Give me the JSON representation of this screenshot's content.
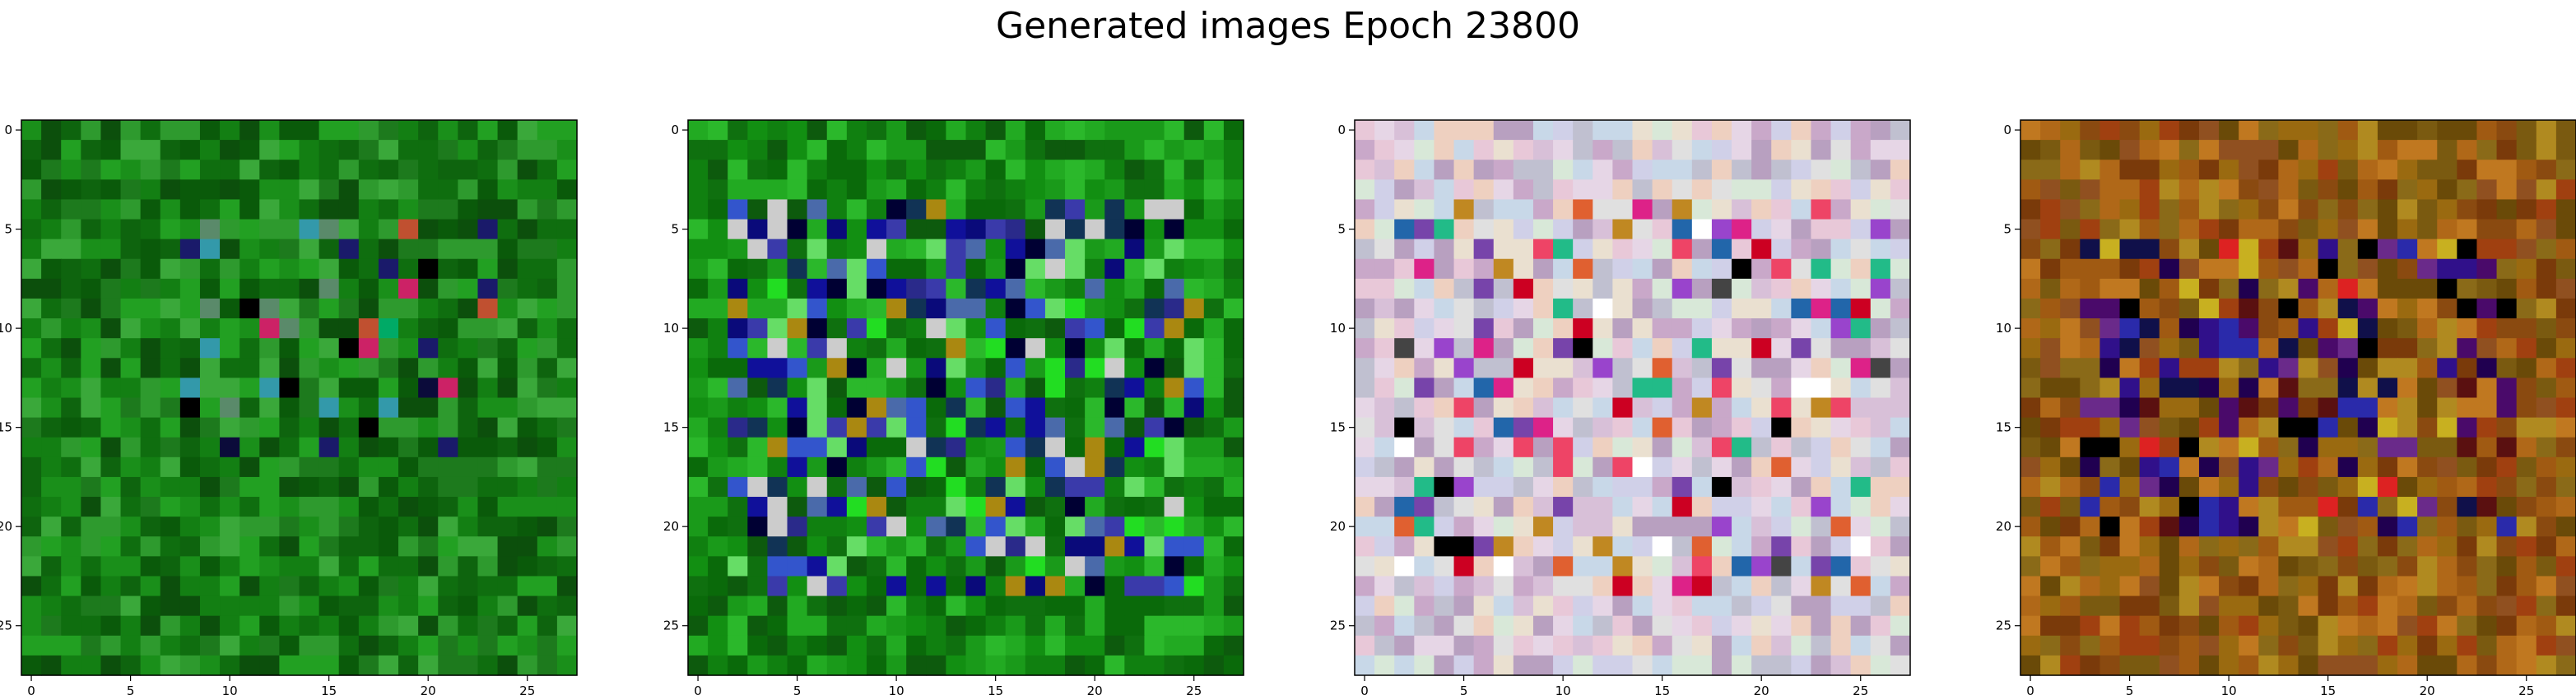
{
  "chart_data": {
    "type": "heatmap",
    "title": "Generated images Epoch 23800",
    "grid": false,
    "image_shape": [
      28,
      28,
      3
    ],
    "x_ticks": [
      "0",
      "5",
      "10",
      "15",
      "20",
      "25"
    ],
    "y_ticks": [
      "0",
      "5",
      "10",
      "15",
      "20",
      "25"
    ],
    "xlim": [
      -0.5,
      27.5
    ],
    "ylim": [
      27.5,
      -0.5
    ],
    "panels": [
      {
        "panel": 1,
        "palette": [
          "#0a5a0a",
          "#0f6e0f",
          "#137f13",
          "#1a8f1a",
          "#0c4f0c",
          "#22a022",
          "#2e9a2e",
          "#0e640e",
          "#3aa83a",
          "#1d7a1d"
        ],
        "feature_colors": [
          "#000000",
          "#0b0b3a",
          "#cc2266",
          "#c05030",
          "#3399aa",
          "#5a8a6a",
          "#00aa66",
          "#1a1a6a"
        ],
        "feature_region": {
          "rows": [
            5,
            16
          ],
          "cols": [
            8,
            23
          ]
        },
        "feature_rate": 0.18
      },
      {
        "panel": 2,
        "palette": [
          "#0a6a0a",
          "#108010",
          "#1a9a1a",
          "#22aa22",
          "#0d5a0d",
          "#2bb82b",
          "#128f12",
          "#0f700f"
        ],
        "feature_colors": [
          "#0a0a7a",
          "#10109a",
          "#2a2a8a",
          "#3a3aaa",
          "#000033",
          "#4a6aaa",
          "#22dd22",
          "#66dd66",
          "#cccccc",
          "#aa8811",
          "#113355",
          "#3355cc"
        ],
        "feature_region": {
          "rows": [
            4,
            23
          ],
          "cols": [
            2,
            25
          ]
        },
        "feature_rate": 0.55
      },
      {
        "panel": 3,
        "palette": [
          "#e6d6e6",
          "#d8c0d8",
          "#c9a8c9",
          "#eae0d0",
          "#d0d0e8",
          "#e8c8d8",
          "#c0c0d0",
          "#d8e8d8",
          "#b8a0c0",
          "#e0e0e0",
          "#c8d8e8",
          "#eed0c0"
        ],
        "feature_colors": [
          "#000000",
          "#cc0022",
          "#dd2288",
          "#e06030",
          "#9944cc",
          "#2266aa",
          "#22bb88",
          "#c08822",
          "#ee4466",
          "#444444",
          "#ffffff",
          "#7744aa"
        ],
        "feature_region": {
          "rows": [
            4,
            23
          ],
          "cols": [
            2,
            26
          ]
        },
        "feature_rate": 0.28
      },
      {
        "panel": 4,
        "palette": [
          "#8a4a10",
          "#a05a12",
          "#7a3a0a",
          "#b06818",
          "#9a6a10",
          "#6a4a08",
          "#c07820",
          "#8a6a18",
          "#a04010",
          "#b08a20",
          "#905020",
          "#7a5a10"
        ],
        "feature_colors": [
          "#200050",
          "#30108a",
          "#000000",
          "#4a0a6a",
          "#5a1010",
          "#2a2aaa",
          "#dd2222",
          "#c8b020",
          "#10104a",
          "#6a2a8a"
        ],
        "feature_region": {
          "rows": [
            6,
            20
          ],
          "cols": [
            3,
            24
          ]
        },
        "feature_rate": 0.45
      }
    ]
  }
}
